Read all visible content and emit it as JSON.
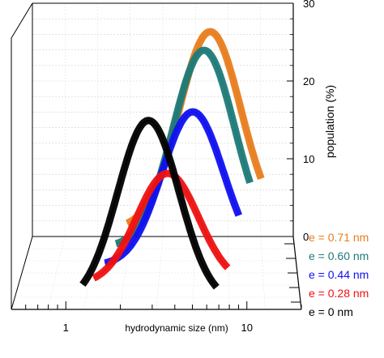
{
  "chart_data": {
    "type": "line",
    "title": "",
    "xlabel": "hydrodynamic size (nm)",
    "ylabel": "population (%)",
    "x_scale": "log",
    "xlim": [
      0.5,
      20
    ],
    "ylim": [
      0,
      30
    ],
    "x_tick_labels": [
      {
        "x": 1,
        "label": "1"
      },
      {
        "x": 10,
        "label": "10"
      }
    ],
    "y_ticks": [
      {
        "y": 0,
        "label": "0"
      },
      {
        "y": 10,
        "label": "10"
      },
      {
        "y": 20,
        "label": "20"
      },
      {
        "y": 30,
        "label": "30"
      }
    ],
    "grid": true,
    "series": [
      {
        "name": "e = 0.71 nm",
        "color": "#e87d1e",
        "peak_size_nm": 4.6,
        "peak_population": 27.5
      },
      {
        "name": "e = 0.60 nm",
        "color": "#1e7a78",
        "peak_size_nm": 4.9,
        "peak_population": 27.5
      },
      {
        "name": "e = 0.44 nm",
        "color": "#1010f0",
        "peak_size_nm": 4.9,
        "peak_population": 21.5
      },
      {
        "name": "e = 0.28 nm",
        "color": "#ee1111",
        "peak_size_nm": 4.1,
        "peak_population": 15.5
      },
      {
        "name": "e = 0 nm",
        "color": "#000000",
        "peak_size_nm": 3.7,
        "peak_population": 25.5
      }
    ]
  }
}
